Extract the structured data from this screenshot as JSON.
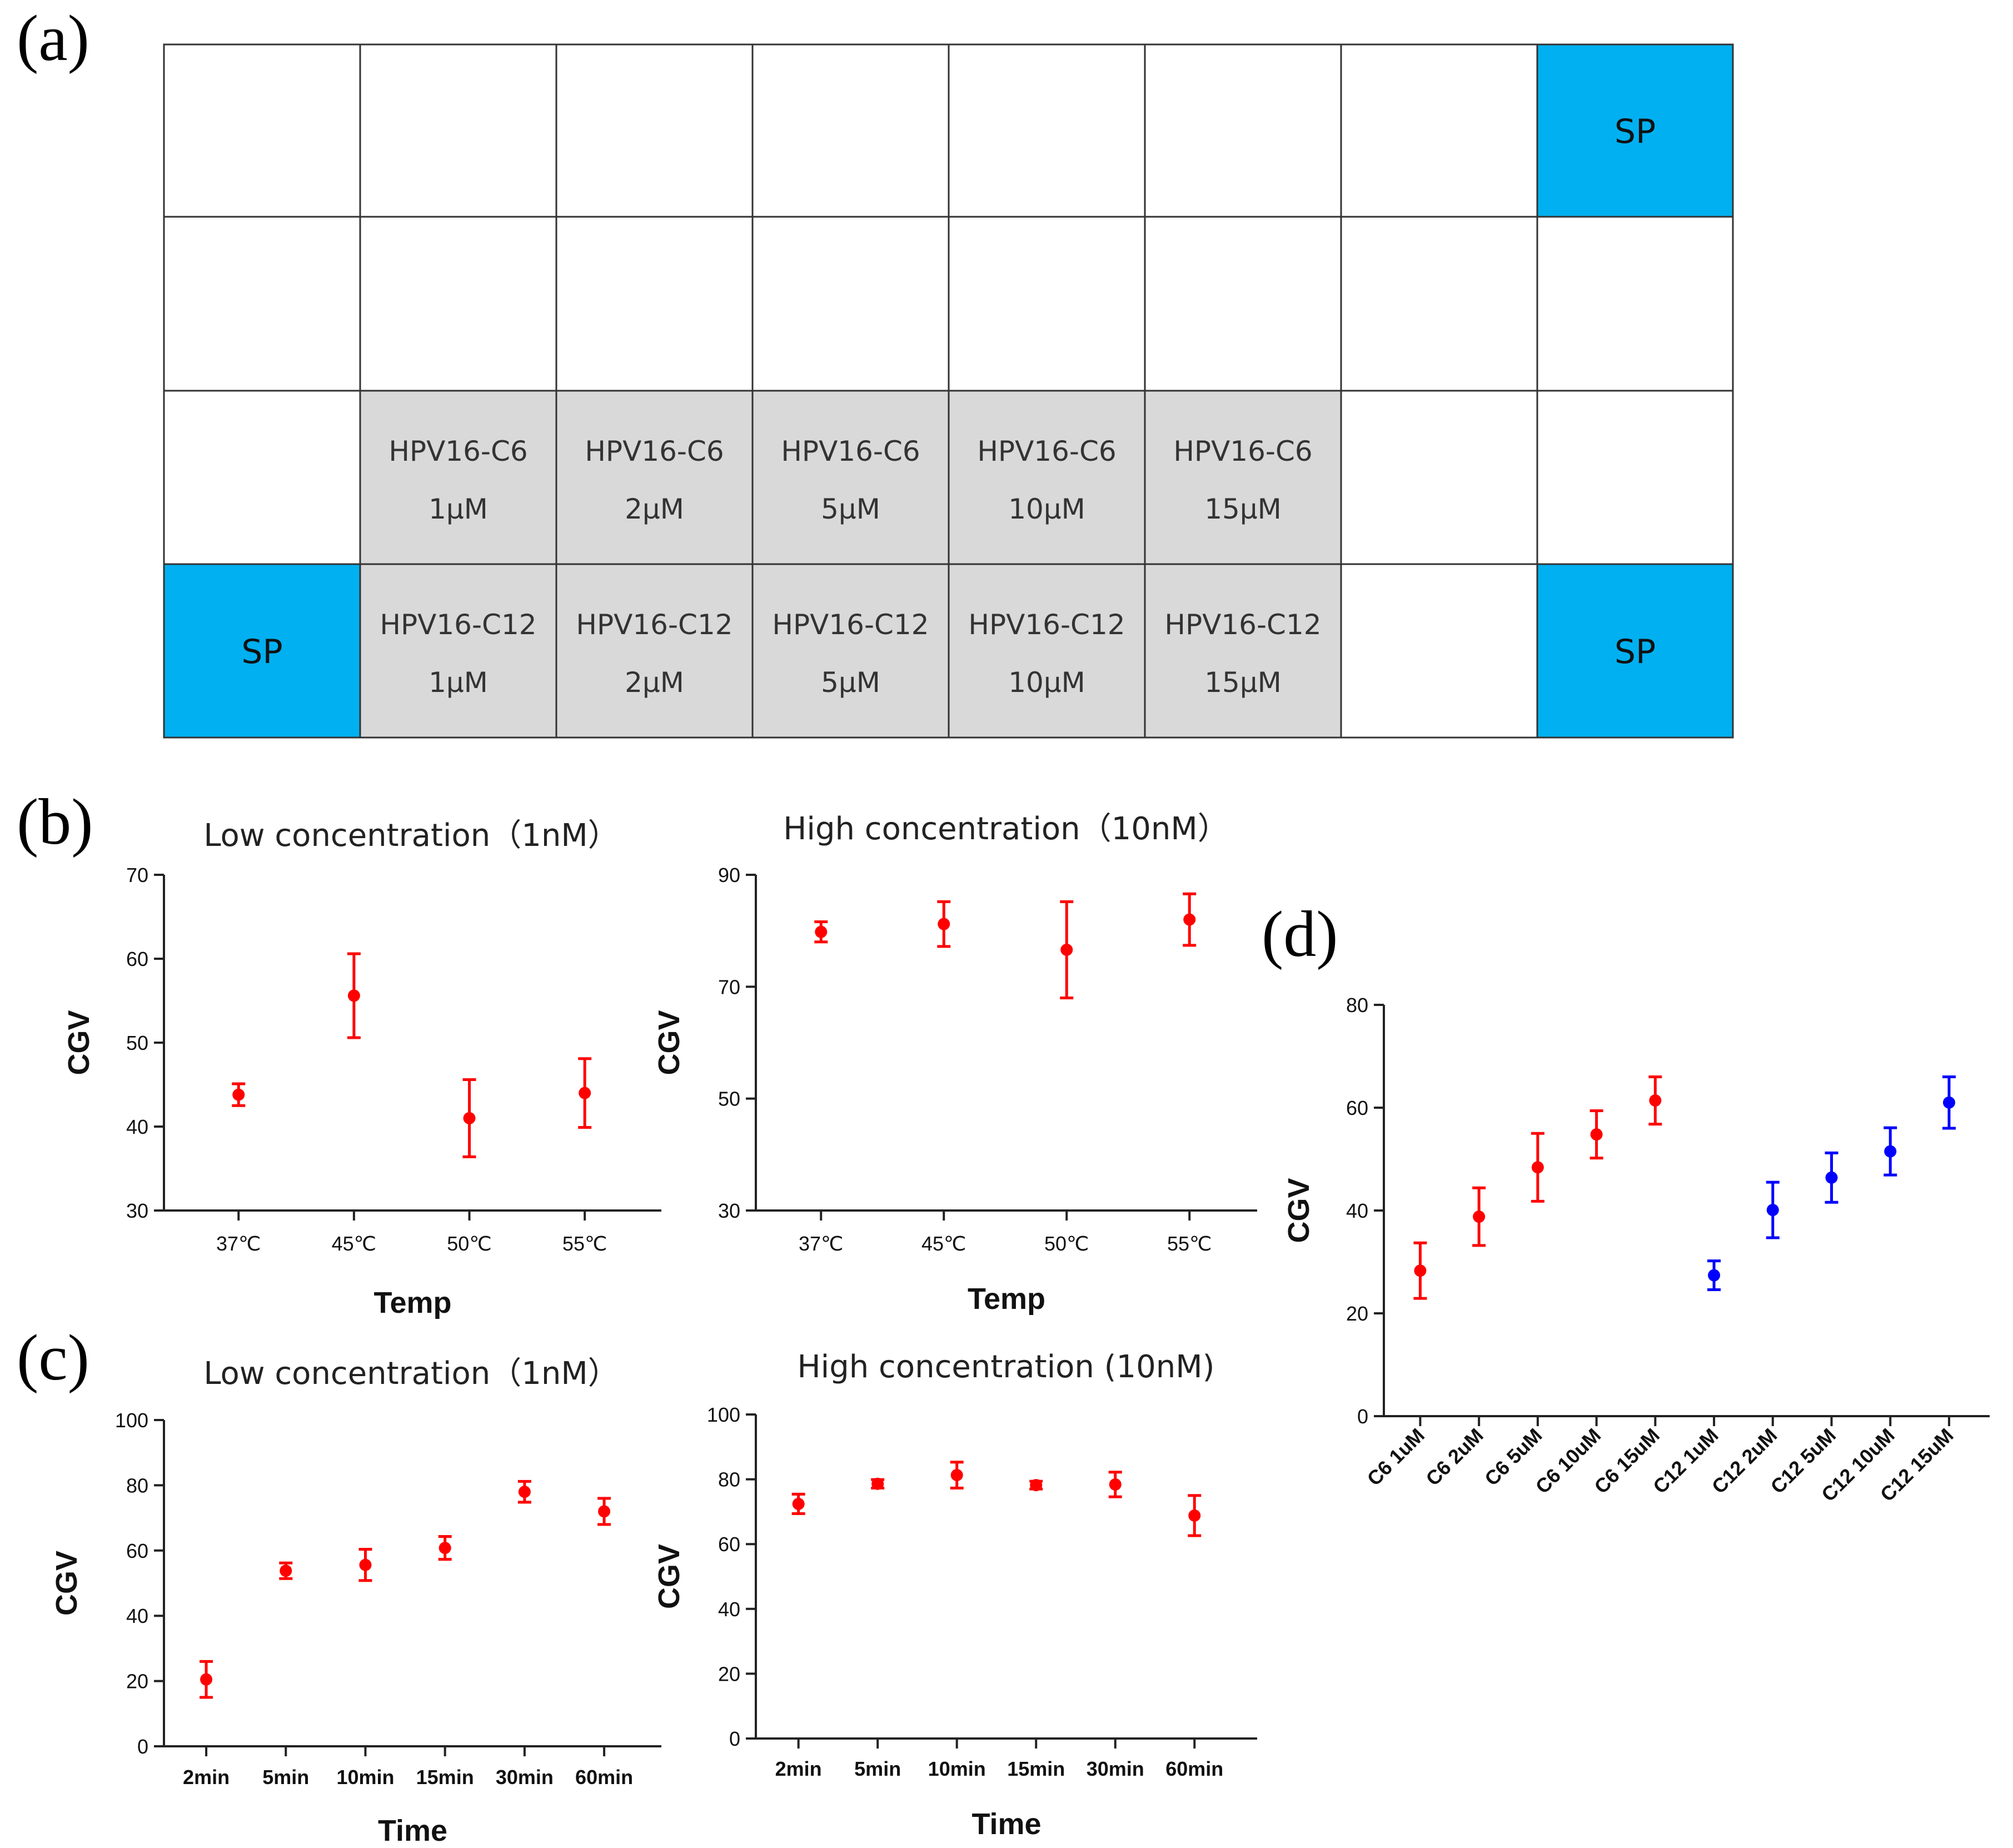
{
  "panel_labels": {
    "a": "(a)",
    "b": "(b)",
    "c": "(c)",
    "d": "(d)"
  },
  "plate": {
    "sp_label": "SP",
    "rows": [
      [
        {
          "type": "empty"
        },
        {
          "type": "empty"
        },
        {
          "type": "empty"
        },
        {
          "type": "empty"
        },
        {
          "type": "empty"
        },
        {
          "type": "empty"
        },
        {
          "type": "empty"
        },
        {
          "type": "sp"
        }
      ],
      [
        {
          "type": "empty"
        },
        {
          "type": "empty"
        },
        {
          "type": "empty"
        },
        {
          "type": "empty"
        },
        {
          "type": "empty"
        },
        {
          "type": "empty"
        },
        {
          "type": "empty"
        },
        {
          "type": "empty"
        }
      ],
      [
        {
          "type": "empty"
        },
        {
          "type": "sample",
          "line1": "HPV16-C6",
          "line2": "1μM"
        },
        {
          "type": "sample",
          "line1": "HPV16-C6",
          "line2": "2μM"
        },
        {
          "type": "sample",
          "line1": "HPV16-C6",
          "line2": "5μM"
        },
        {
          "type": "sample",
          "line1": "HPV16-C6",
          "line2": "10μM"
        },
        {
          "type": "sample",
          "line1": "HPV16-C6",
          "line2": "15μM"
        },
        {
          "type": "empty"
        },
        {
          "type": "empty"
        }
      ],
      [
        {
          "type": "sp"
        },
        {
          "type": "sample",
          "line1": "HPV16-C12",
          "line2": "1μM"
        },
        {
          "type": "sample",
          "line1": "HPV16-C12",
          "line2": "2μM"
        },
        {
          "type": "sample",
          "line1": "HPV16-C12",
          "line2": "5μM"
        },
        {
          "type": "sample",
          "line1": "HPV16-C12",
          "line2": "10μM"
        },
        {
          "type": "sample",
          "line1": "HPV16-C12",
          "line2": "15μM"
        },
        {
          "type": "empty"
        },
        {
          "type": "sp"
        }
      ]
    ],
    "colors": {
      "sp": "#00b0f0",
      "sample": "#d9d9d9",
      "empty": "#ffffff",
      "grid": "#333333"
    }
  },
  "chart_data": [
    {
      "id": "b_low",
      "panel": "b",
      "type": "scatter",
      "title": "Low concentration（1nM）",
      "xlabel": "Temp",
      "ylabel": "CGV",
      "categories": [
        "37℃",
        "45℃",
        "50℃",
        "55℃"
      ],
      "ylim": [
        30,
        70
      ],
      "yticks": [
        30,
        40,
        50,
        60,
        70
      ],
      "series": [
        {
          "name": "CGV",
          "color": "#ff0000",
          "values": [
            43.8,
            55.6,
            41.0,
            44.0
          ],
          "errors": [
            1.3,
            5.0,
            4.6,
            4.1
          ]
        }
      ]
    },
    {
      "id": "b_high",
      "panel": "b",
      "type": "scatter",
      "title": "High concentration（10nM）",
      "xlabel": "Temp",
      "ylabel": "CGV",
      "categories": [
        "37℃",
        "45℃",
        "50℃",
        "55℃"
      ],
      "ylim": [
        30,
        90
      ],
      "yticks": [
        30,
        50,
        70,
        90
      ],
      "series": [
        {
          "name": "CGV",
          "color": "#ff0000",
          "values": [
            79.8,
            81.2,
            76.6,
            82.0
          ],
          "errors": [
            1.8,
            4.0,
            8.6,
            4.6
          ]
        }
      ]
    },
    {
      "id": "c_low",
      "panel": "c",
      "type": "scatter",
      "title": "Low concentration（1nM）",
      "xlabel": "Time",
      "ylabel": "CGV",
      "categories": [
        "2min",
        "5min",
        "10min",
        "15min",
        "30min",
        "60min"
      ],
      "ylim": [
        0,
        100
      ],
      "yticks": [
        0,
        20,
        40,
        60,
        80,
        100
      ],
      "series": [
        {
          "name": "CGV",
          "color": "#ff0000",
          "values": [
            20.5,
            53.8,
            55.6,
            60.8,
            78.0,
            72.0
          ],
          "errors": [
            5.5,
            2.4,
            4.8,
            3.5,
            3.2,
            4.0
          ]
        }
      ]
    },
    {
      "id": "c_high",
      "panel": "c",
      "type": "scatter",
      "title": "High concentration (10nM)",
      "xlabel": "Time",
      "ylabel": "CGV",
      "categories": [
        "2min",
        "5min",
        "10min",
        "15min",
        "30min",
        "60min"
      ],
      "ylim": [
        0,
        100
      ],
      "yticks": [
        0,
        20,
        40,
        60,
        80,
        100
      ],
      "series": [
        {
          "name": "CGV",
          "color": "#ff0000",
          "values": [
            72.4,
            78.6,
            81.3,
            78.2,
            78.4,
            68.8
          ],
          "errors": [
            3.0,
            1.3,
            4.0,
            1.2,
            3.8,
            6.2
          ]
        }
      ]
    },
    {
      "id": "d",
      "panel": "d",
      "type": "scatter",
      "title": "",
      "xlabel": "",
      "ylabel": "CGV",
      "categories": [
        "C6 1uM",
        "C6 2uM",
        "C6 5uM",
        "C6 10uM",
        "C6 15uM",
        "C12 1uM",
        "C12 2uM",
        "C12 5uM",
        "C12 10uM",
        "C12 15uM"
      ],
      "ylim": [
        0,
        80
      ],
      "yticks": [
        0,
        20,
        40,
        60,
        80
      ],
      "series": [
        {
          "name": "C6",
          "color": "#ff0000",
          "indices": [
            0,
            1,
            2,
            3,
            4
          ],
          "values": [
            28.3,
            38.8,
            48.4,
            54.8,
            61.4
          ],
          "errors": [
            5.4,
            5.6,
            6.6,
            4.6,
            4.6
          ]
        },
        {
          "name": "C12",
          "color": "#0000ff",
          "indices": [
            5,
            6,
            7,
            8,
            9
          ],
          "values": [
            27.4,
            40.1,
            46.4,
            51.5,
            61.0
          ],
          "errors": [
            2.8,
            5.4,
            4.8,
            4.6,
            5.0
          ]
        }
      ]
    }
  ]
}
